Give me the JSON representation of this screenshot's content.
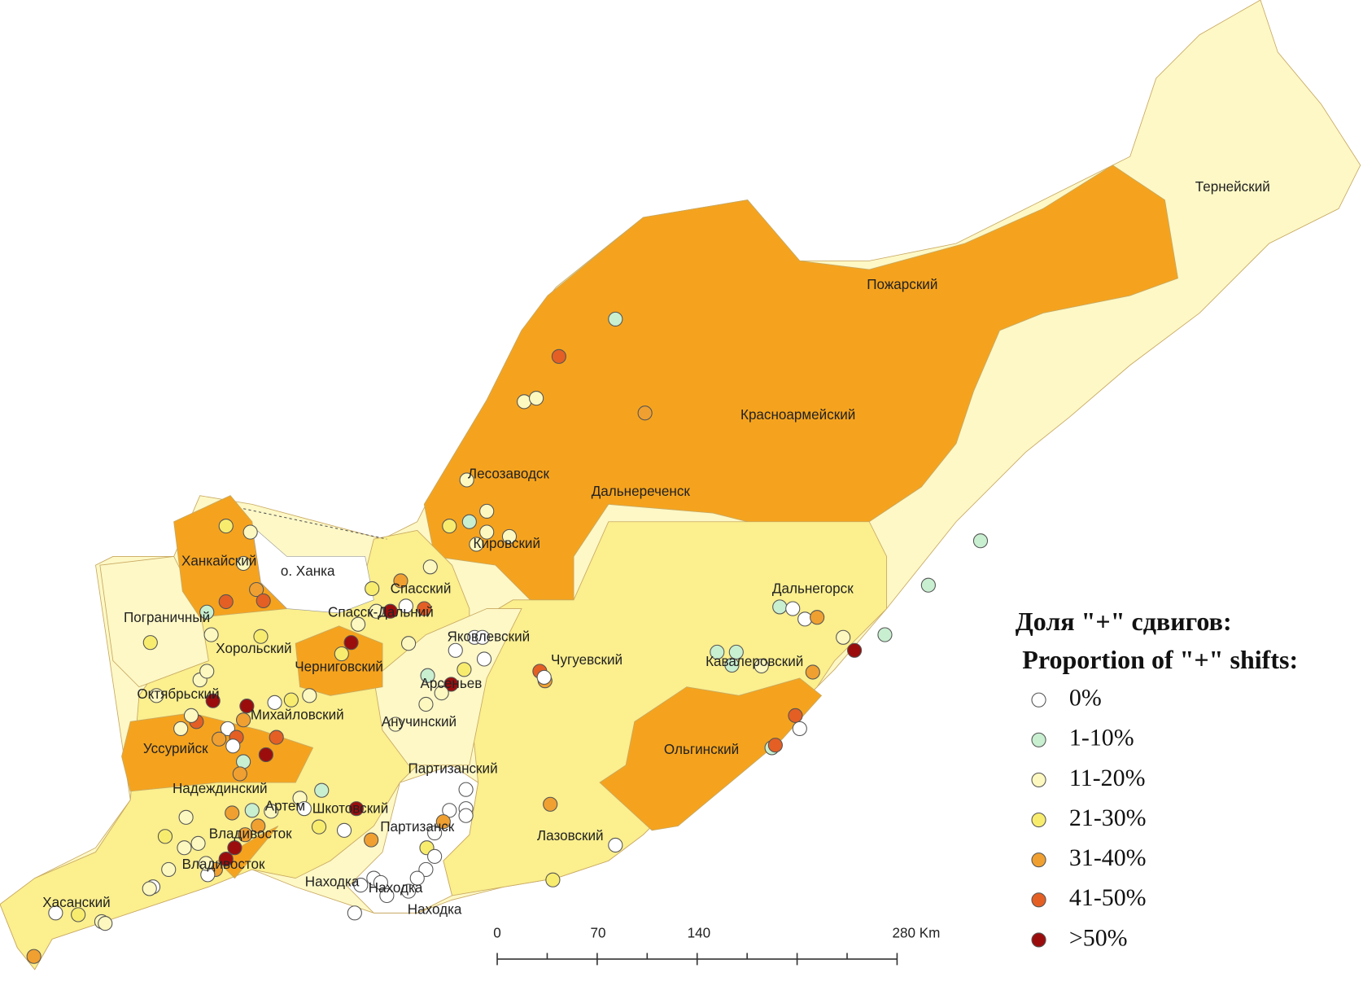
{
  "map": {
    "regions": [
      {
        "label": "Тернейский"
      },
      {
        "label": "Пожарский"
      },
      {
        "label": "Красноармейский"
      },
      {
        "label": "Лесозаводск"
      },
      {
        "label": "Дальнереченск"
      },
      {
        "label": "Кировский"
      },
      {
        "label": "Ханкайский"
      },
      {
        "label": "о. Ханка"
      },
      {
        "label": "Спасский"
      },
      {
        "label": "Спасск-Дальний"
      },
      {
        "label": "Пограничный"
      },
      {
        "label": "Хорольский"
      },
      {
        "label": "Черниговский"
      },
      {
        "label": "Яковлевский"
      },
      {
        "label": "Арсеньев"
      },
      {
        "label": "Октябрьский"
      },
      {
        "label": "Михайловский"
      },
      {
        "label": "Анучинский"
      },
      {
        "label": "Уссурийск"
      },
      {
        "label": "Партизанский"
      },
      {
        "label": "Надеждинский"
      },
      {
        "label": "Артем"
      },
      {
        "label": "Шкотовский"
      },
      {
        "label": "Партизанск"
      },
      {
        "label": "Владивосток"
      },
      {
        "label": "Владивосток"
      },
      {
        "label": "Находка"
      },
      {
        "label": "Находка"
      },
      {
        "label": "Находка"
      },
      {
        "label": "Хасанский"
      },
      {
        "label": "Чугуевский"
      },
      {
        "label": "Кавалеровский"
      },
      {
        "label": "Дальнегорск"
      },
      {
        "label": "Ольгинский"
      },
      {
        "label": "Лазовский"
      }
    ],
    "legend": {
      "title_ru": "Доля \"+\" сдвигов:",
      "title_en": "Proportion of \"+\" shifts:",
      "items": [
        {
          "label": "0%",
          "color": "#ffffff"
        },
        {
          "label": "1-10%",
          "color": "#c8efd0"
        },
        {
          "label": "11-20%",
          "color": "#fdf8bf"
        },
        {
          "label": "21-30%",
          "color": "#f8ec6e"
        },
        {
          "label": "31-40%",
          "color": "#f0a030"
        },
        {
          "label": "41-50%",
          "color": "#e45f24"
        },
        {
          "label": ">50%",
          "color": "#9b0d0d"
        }
      ]
    },
    "scale_bar": {
      "labels": [
        "0",
        "70",
        "140",
        "280 Km"
      ]
    }
  }
}
